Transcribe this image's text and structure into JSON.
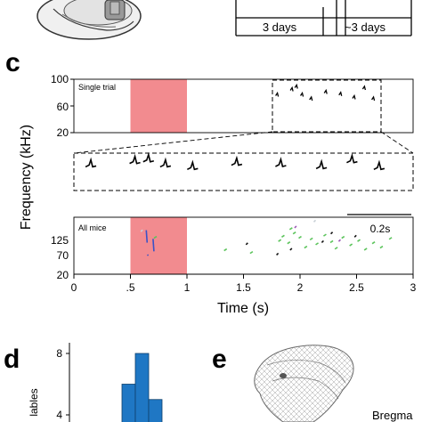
{
  "panel_labels": {
    "c": "c",
    "d": "d",
    "e": "e"
  },
  "timeline": {
    "label_1": "3 days",
    "label_2": "~3 days"
  },
  "single_trial": {
    "label": "Single trial",
    "y_ticks": [
      "100",
      "60",
      "20"
    ]
  },
  "scale_bar": {
    "label": "0.2s"
  },
  "all_mice": {
    "label": "All mice",
    "y_ticks": [
      "125",
      "70",
      "20"
    ]
  },
  "x_axis": {
    "ticks": [
      "0",
      ".5",
      "1",
      "1.5",
      "2",
      "2.5",
      "3"
    ],
    "title": "Time (s)"
  },
  "y_axis_title": "Frequency (kHz)",
  "panel_d": {
    "ylabel_partial": "lables",
    "y_ticks": [
      "8",
      "4"
    ]
  },
  "panel_e": {
    "label_partial": "Bregma"
  },
  "colors": {
    "stim": "#f28b8f",
    "bar": "#1f77c4",
    "green": "#5cc45c",
    "purple": "#9b59b6",
    "blue": "#3a52c7"
  },
  "chart_data": {
    "type": "scatter",
    "xlim": [
      0,
      3
    ],
    "xlabel": "Time (s)",
    "ylabel": "Frequency (kHz)",
    "stimulus_window": [
      0.5,
      1.0
    ],
    "single_trial": {
      "ylim": [
        20,
        100
      ],
      "calls": [
        [
          1.8,
          78
        ],
        [
          1.93,
          86
        ],
        [
          1.97,
          90
        ],
        [
          2.02,
          78
        ],
        [
          2.1,
          72
        ],
        [
          2.23,
          82
        ],
        [
          2.36,
          79
        ],
        [
          2.48,
          74
        ],
        [
          2.57,
          88
        ],
        [
          2.65,
          72
        ]
      ]
    },
    "all_mice": {
      "ylim": [
        20,
        125
      ],
      "green_points": [
        [
          1.34,
          65
        ],
        [
          1.57,
          60
        ],
        [
          1.82,
          82
        ],
        [
          1.85,
          90
        ],
        [
          1.9,
          78
        ],
        [
          1.95,
          96
        ],
        [
          2.0,
          88
        ],
        [
          2.05,
          70
        ],
        [
          2.1,
          85
        ],
        [
          2.15,
          76
        ],
        [
          2.22,
          92
        ],
        [
          2.28,
          80
        ],
        [
          2.32,
          68
        ],
        [
          2.38,
          88
        ],
        [
          2.45,
          74
        ],
        [
          2.52,
          82
        ],
        [
          2.58,
          66
        ],
        [
          2.65,
          78
        ],
        [
          2.72,
          70
        ],
        [
          2.8,
          86
        ],
        [
          0.72,
          88
        ],
        [
          1.92,
          104
        ]
      ],
      "black_points": [
        [
          1.53,
          76
        ],
        [
          1.92,
          66
        ],
        [
          2.28,
          96
        ],
        [
          2.49,
          90
        ],
        [
          1.8,
          57
        ],
        [
          2.2,
          80
        ]
      ],
      "purple_points": [
        [
          1.96,
          107
        ],
        [
          2.35,
          82
        ]
      ],
      "blue_points": [
        [
          0.64,
          88
        ],
        [
          0.65,
          56
        ],
        [
          0.7,
          72
        ]
      ],
      "light_points": [
        [
          0.6,
          100
        ],
        [
          2.13,
          118
        ]
      ]
    },
    "panel_d_bars": {
      "type": "bar",
      "y_ticks": [
        4,
        8
      ],
      "values": [
        6,
        8,
        5
      ]
    }
  }
}
